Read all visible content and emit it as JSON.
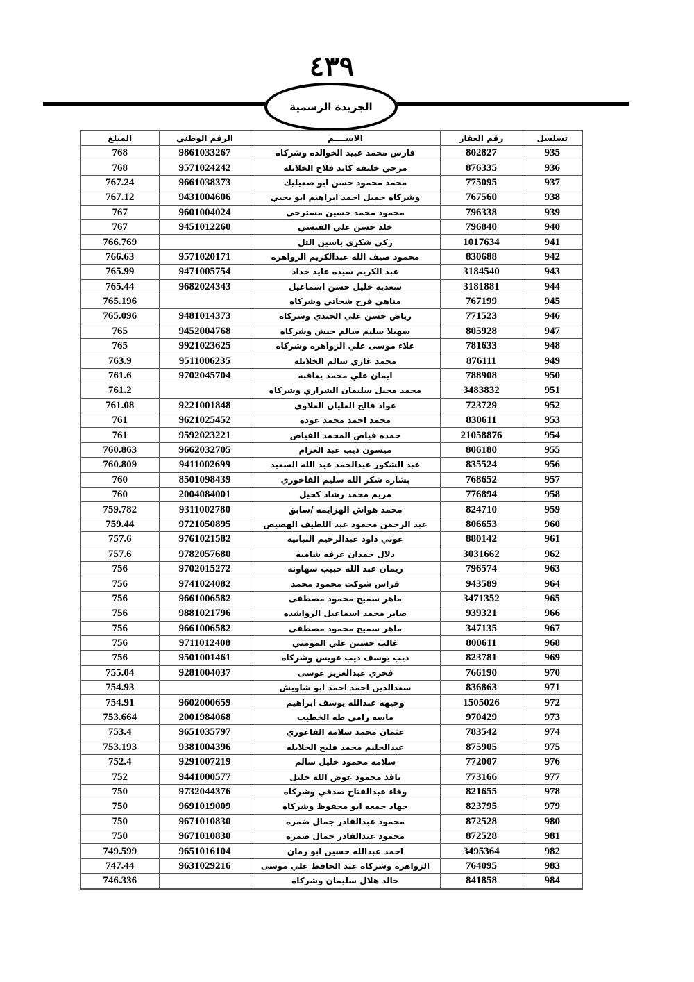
{
  "header": {
    "page_number": "٤٣٩",
    "publication": "الجريدة الرسمية"
  },
  "table": {
    "columns": [
      "تسلسل",
      "رقم العقار",
      "الاســــم",
      "الرقم الوطني",
      "المبلغ"
    ],
    "rows": [
      [
        "935",
        "802827",
        "فارس محمد عبيد الخوالده وشركاه",
        "9861033267",
        "768"
      ],
      [
        "936",
        "876335",
        "مرجي خليفه كايد فلاح الخلايله",
        "9571024242",
        "768"
      ],
      [
        "937",
        "775095",
        "محمد محمود حسن ابو صعيليك",
        "9661038373",
        "767.24"
      ],
      [
        "938",
        "767560",
        "وشركاه جميل احمد ابراهيم ابو يحيي",
        "9431004606",
        "767.12"
      ],
      [
        "939",
        "796338",
        "محمود محمد حسين مسترحي",
        "9601004024",
        "767"
      ],
      [
        "940",
        "796840",
        "خلد حسن علي الفيسي",
        "9451012260",
        "767"
      ],
      [
        "941",
        "1017634",
        "زكي شكري ياسين التل",
        "",
        "766.769"
      ],
      [
        "942",
        "830688",
        "محمود ضيف الله عبدالكريم الزواهره",
        "9571020171",
        "766.63"
      ],
      [
        "943",
        "3184540",
        "عبد الكريم سيده عايد حداد",
        "9471005754",
        "765.99"
      ],
      [
        "944",
        "3181881",
        "سعديه خليل حسن اسماعيل",
        "9682024343",
        "765.44"
      ],
      [
        "945",
        "767199",
        "مناهي فرح شحاتي وشركاه",
        "",
        "765.196"
      ],
      [
        "946",
        "771523",
        "رياض حسن علي الجندي وشركاه",
        "9481014373",
        "765.096"
      ],
      [
        "947",
        "805928",
        "سهيلا سليم سالم حبش وشركاه",
        "9452004768",
        "765"
      ],
      [
        "948",
        "781633",
        "علاء موسى علي الزواهره وشركاه",
        "9921023625",
        "765"
      ],
      [
        "949",
        "876111",
        "محمد غازي سالم الخلايله",
        "9511006235",
        "763.9"
      ],
      [
        "950",
        "788908",
        "ايمان علي محمد يعاقبه",
        "9702045704",
        "761.6"
      ],
      [
        "951",
        "3483832",
        "محمد محيل سليمان الشراري وشركاه",
        "",
        "761.2"
      ],
      [
        "952",
        "723729",
        "عواد فالح العليان العلاوي",
        "9221001848",
        "761.08"
      ],
      [
        "953",
        "830611",
        "محمد احمد محمد عوده",
        "9621025452",
        "761"
      ],
      [
        "954",
        "21058876",
        "حمده فياض المحمد الفياض",
        "9592023221",
        "761"
      ],
      [
        "955",
        "806180",
        "ميسون ذيب عبد العزام",
        "9662032705",
        "760.863"
      ],
      [
        "956",
        "835524",
        "عبد الشكور عبدالحمد عبد الله السعيد",
        "9411002699",
        "760.809"
      ],
      [
        "957",
        "768652",
        "بشاره شكر الله سليم الفاخوري",
        "8501098439",
        "760"
      ],
      [
        "958",
        "776894",
        "مريم محمد رشاد كحيل",
        "2004084001",
        "760"
      ],
      [
        "959",
        "824710",
        "محمد هواش الهزايمه /سابق",
        "9311002780",
        "759.782"
      ],
      [
        "960",
        "806653",
        "عبد الرحمن محمود عبد اللطيف الهصيص",
        "9721050895",
        "759.44"
      ],
      [
        "961",
        "880142",
        "عوني داود عبدالرحيم النباتيه",
        "9761021582",
        "757.6"
      ],
      [
        "962",
        "3031662",
        "دلال حمدان عرفه شاميه",
        "9782057680",
        "757.6"
      ],
      [
        "963",
        "796574",
        "ريمان عبد الله حبيب سهاونه",
        "9702015272",
        "756"
      ],
      [
        "964",
        "943589",
        "فراس شوكت محمود محمد",
        "9741024082",
        "756"
      ],
      [
        "965",
        "3471352",
        "ماهر سميح محمود مصطفى",
        "9661006582",
        "756"
      ],
      [
        "966",
        "939321",
        "صابر محمد اسماعيل الرواشده",
        "9881021796",
        "756"
      ],
      [
        "967",
        "347135",
        "ماهر سميح محمود مصطفى",
        "9661006582",
        "756"
      ],
      [
        "968",
        "800611",
        "غالب حسين علي المومني",
        "9711012408",
        "756"
      ],
      [
        "969",
        "823781",
        "ذيب يوسف ذيب عويس وشركاه",
        "9501001461",
        "756"
      ],
      [
        "970",
        "766190",
        "فخري عبدالعزيز عوسى",
        "9281004037",
        "755.04"
      ],
      [
        "971",
        "836863",
        "سعدالدين احمد احمد ابو شاويش",
        "",
        "754.93"
      ],
      [
        "972",
        "1505026",
        "وجيهه عبدالله يوسف ابراهيم",
        "9602000659",
        "754.91"
      ],
      [
        "973",
        "970429",
        "ماسه رامي طه الخطيب",
        "2001984068",
        "753.664"
      ],
      [
        "974",
        "783542",
        "عثمان محمد سلامه الفاعوري",
        "9651035797",
        "753.4"
      ],
      [
        "975",
        "875905",
        "عبدالحليم محمد فليح الخلايله",
        "9381004396",
        "753.193"
      ],
      [
        "976",
        "772007",
        "سلامه محمود خليل سالم",
        "9291007219",
        "752.4"
      ],
      [
        "977",
        "773166",
        "نافذ محمود عوض الله خليل",
        "9441000577",
        "752"
      ],
      [
        "978",
        "821655",
        "وفاء عبدالفتاح صدقي وشركاه",
        "9732044376",
        "750"
      ],
      [
        "979",
        "823795",
        "جهاد جمعه ابو محفوظ  وشركاه",
        "9691019009",
        "750"
      ],
      [
        "980",
        "872528",
        "محمود عبدالقادر جمال ضمره",
        "9671010830",
        "750"
      ],
      [
        "981",
        "872528",
        "محمود عبدالقادر جمال ضمره",
        "9671010830",
        "750"
      ],
      [
        "982",
        "3495364",
        "احمد عبدالله حسين ابو رمان",
        "9651016104",
        "749.599"
      ],
      [
        "983",
        "764095",
        "الزواهره وشركاه  عبد الحافظ علي موسى",
        "9631029216",
        "747.44"
      ],
      [
        "984",
        "841858",
        "خالد هلال سليمان وشركاه",
        "",
        "746.336"
      ]
    ]
  }
}
